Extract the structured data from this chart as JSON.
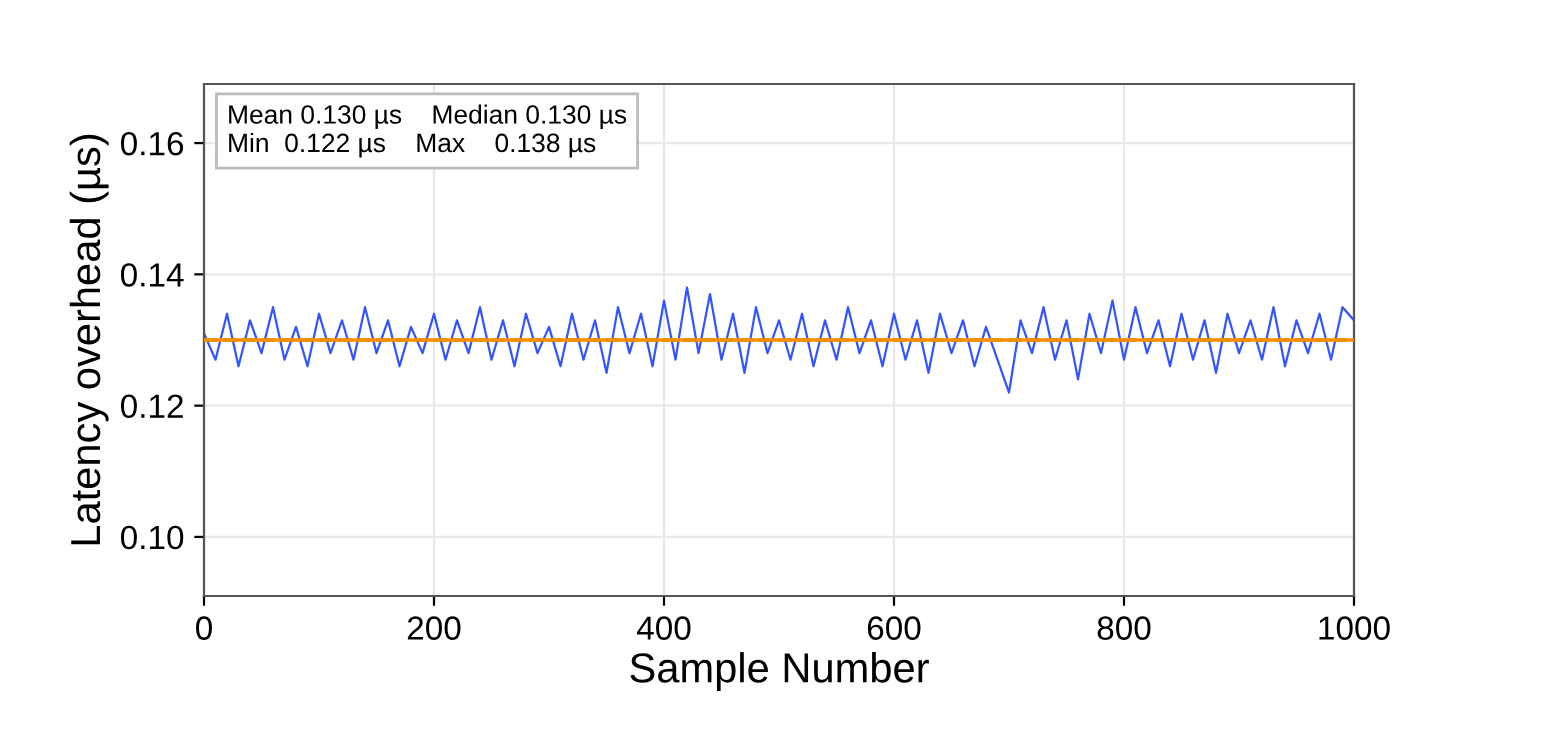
{
  "chart_data": {
    "type": "line",
    "xlabel": "Sample Number",
    "ylabel": "Latency overhead (µs)",
    "x": [
      0,
      10,
      20,
      30,
      40,
      50,
      60,
      70,
      80,
      90,
      100,
      110,
      120,
      130,
      140,
      150,
      160,
      170,
      180,
      190,
      200,
      210,
      220,
      230,
      240,
      250,
      260,
      270,
      280,
      290,
      300,
      310,
      320,
      330,
      340,
      350,
      360,
      370,
      380,
      390,
      400,
      410,
      420,
      430,
      440,
      450,
      460,
      470,
      480,
      490,
      500,
      510,
      520,
      530,
      540,
      550,
      560,
      570,
      580,
      590,
      600,
      610,
      620,
      630,
      640,
      650,
      660,
      670,
      680,
      690,
      700,
      710,
      720,
      730,
      740,
      750,
      760,
      770,
      780,
      790,
      800,
      810,
      820,
      830,
      840,
      850,
      860,
      870,
      880,
      890,
      900,
      910,
      920,
      930,
      940,
      950,
      960,
      970,
      980,
      990,
      1000
    ],
    "series": [
      {
        "color": "#3355ff",
        "values": [
          0.131,
          0.127,
          0.134,
          0.126,
          0.133,
          0.128,
          0.135,
          0.127,
          0.132,
          0.126,
          0.134,
          0.128,
          0.133,
          0.127,
          0.135,
          0.128,
          0.133,
          0.126,
          0.132,
          0.128,
          0.134,
          0.127,
          0.133,
          0.128,
          0.135,
          0.127,
          0.133,
          0.126,
          0.134,
          0.128,
          0.132,
          0.126,
          0.134,
          0.127,
          0.133,
          0.125,
          0.135,
          0.128,
          0.134,
          0.126,
          0.136,
          0.127,
          0.138,
          0.128,
          0.137,
          0.127,
          0.134,
          0.125,
          0.135,
          0.128,
          0.133,
          0.127,
          0.134,
          0.126,
          0.133,
          0.127,
          0.135,
          0.128,
          0.133,
          0.126,
          0.134,
          0.127,
          0.133,
          0.125,
          0.134,
          0.128,
          0.133,
          0.126,
          0.132,
          0.127,
          0.122,
          0.133,
          0.128,
          0.135,
          0.127,
          0.133,
          0.124,
          0.134,
          0.128,
          0.136,
          0.127,
          0.135,
          0.128,
          0.133,
          0.126,
          0.134,
          0.127,
          0.133,
          0.125,
          0.134,
          0.128,
          0.133,
          0.127,
          0.135,
          0.126,
          0.133,
          0.128,
          0.134,
          0.127,
          0.135,
          0.133
        ]
      }
    ],
    "ref_lines": [
      {
        "axis": "y",
        "value": 0.13,
        "color": "#2ca02c",
        "line_style": "dashed"
      },
      {
        "axis": "y",
        "value": 0.13,
        "color": "#ff8c00",
        "line_style": "solid"
      }
    ],
    "annotations": [
      "Mean 0.130 µs    Median 0.130 µs\nMin  0.122 µs    Max    0.138 µs"
    ],
    "xlim": [
      0,
      1000
    ],
    "xticks": [
      0,
      200,
      400,
      600,
      800,
      1000
    ],
    "ylim": [
      0.091,
      0.169
    ],
    "yticks": [
      {
        "value": 0.1,
        "label": "0.10"
      },
      0.12,
      0.14,
      0.16
    ],
    "grid": true,
    "marker": "none",
    "line_style": "solid"
  }
}
